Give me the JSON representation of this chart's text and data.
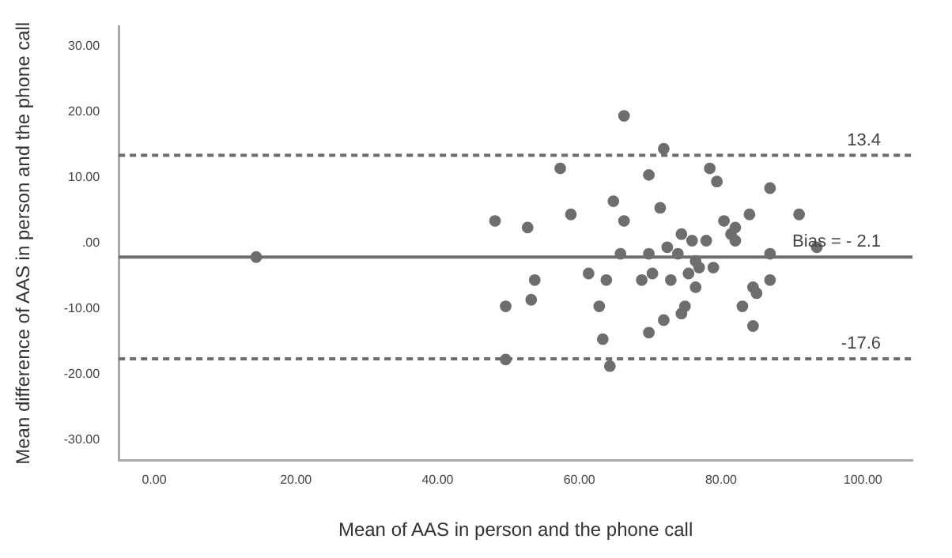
{
  "chart_data": {
    "type": "scatter",
    "xlabel": "Mean of AAS in person and the phone call",
    "ylabel": "Mean difference of AAS in person and the phone call",
    "series": [
      {
        "color": "#6e6e6e",
        "x": [
          14.4,
          66.3,
          71.9,
          57.3,
          69.8,
          78.4,
          79.4,
          64.8,
          71.4,
          58.8,
          48.1,
          66.3,
          52.7,
          80.4,
          82.0,
          81.4,
          82.0,
          84.0,
          74.4,
          75.9,
          77.9,
          72.4,
          65.8,
          69.8,
          73.9,
          76.4,
          76.9,
          78.9,
          61.3,
          70.3,
          75.4,
          53.7,
          63.8,
          68.8,
          72.9,
          76.4,
          84.5,
          85.0,
          53.2,
          49.6,
          62.8,
          74.9,
          74.4,
          83.0,
          71.9,
          69.8,
          84.5,
          63.3,
          49.6,
          64.3,
          86.9,
          91.0,
          93.5,
          86.9,
          86.9
        ],
        "values": [
          -2.1,
          19.4,
          14.4,
          11.4,
          10.4,
          11.4,
          9.4,
          6.4,
          5.4,
          4.4,
          3.4,
          3.4,
          2.4,
          3.4,
          2.4,
          1.4,
          0.4,
          4.4,
          1.4,
          0.4,
          0.4,
          -0.6,
          -1.6,
          -1.6,
          -1.6,
          -2.7,
          -3.7,
          -3.7,
          -4.6,
          -4.6,
          -4.6,
          -5.6,
          -5.6,
          -5.6,
          -5.6,
          -6.7,
          -6.7,
          -7.6,
          -8.6,
          -9.6,
          -9.6,
          -9.6,
          -10.7,
          -9.6,
          -11.7,
          -13.6,
          -12.6,
          -14.6,
          -17.7,
          -18.7,
          8.4,
          4.4,
          -0.6,
          -1.6,
          -5.6
        ]
      }
    ],
    "marker": "circle",
    "xlim": [
      -5,
      107
    ],
    "xticks": [
      {
        "value": 0,
        "label": "0.00"
      },
      {
        "value": 20,
        "label": "20.00"
      },
      {
        "value": 40,
        "label": "40.00"
      },
      {
        "value": 60,
        "label": "60.00"
      },
      {
        "value": 80,
        "label": "80.00"
      },
      {
        "value": 100,
        "label": "100.00"
      }
    ],
    "ylim": [
      -33,
      33
    ],
    "yticks": [
      {
        "value": -30,
        "label": "-30.00"
      },
      {
        "value": -20,
        "label": "-20.00"
      },
      {
        "value": -10,
        "label": "-10.00"
      },
      {
        "value": 0,
        "label": ".00"
      },
      {
        "value": 10,
        "label": "10.00"
      },
      {
        "value": 20,
        "label": "20.00"
      },
      {
        "value": 30,
        "label": "30.00"
      }
    ],
    "ref_lines": [
      {
        "axis": "y",
        "value": 13.4,
        "label": "13.4",
        "color": "#6e6e6e",
        "line_style": "dashed"
      },
      {
        "axis": "y",
        "value": -2.1,
        "label": "Bias = - 2.1",
        "color": "#6e6e6e",
        "line_style": "solid"
      },
      {
        "axis": "y",
        "value": -17.6,
        "label": "-17.6",
        "color": "#6e6e6e",
        "line_style": "dashed"
      }
    ],
    "grid": false,
    "legend": false
  }
}
